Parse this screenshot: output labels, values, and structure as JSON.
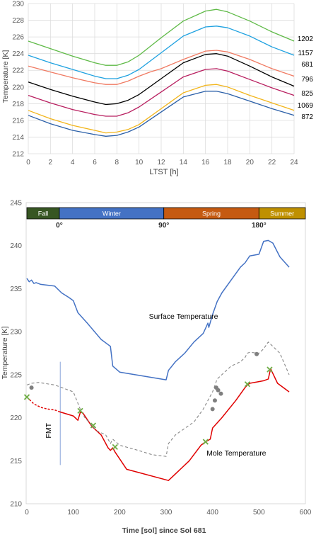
{
  "chart_data": [
    {
      "type": "line",
      "title": "",
      "xlabel": "LTST  [h]",
      "ylabel": "Temperature [K]",
      "xlim": [
        0,
        24
      ],
      "ylim": [
        212,
        230
      ],
      "x_ticks": [
        "0",
        "2",
        "4",
        "6",
        "8",
        "10",
        "12",
        "14",
        "16",
        "18",
        "20",
        "22",
        "24"
      ],
      "y_ticks": [
        "212",
        "214",
        "216",
        "218",
        "220",
        "222",
        "224",
        "226",
        "228",
        "230"
      ],
      "grid": true,
      "legend": "right-end labels",
      "series": [
        {
          "name": "1202",
          "color": "#5fba47",
          "x": [
            0,
            2,
            4,
            6,
            7,
            8,
            9,
            10,
            12,
            14,
            16,
            17,
            18,
            20,
            22,
            24
          ],
          "y": [
            225.5,
            224.6,
            223.7,
            222.9,
            222.6,
            222.6,
            223.0,
            223.8,
            225.9,
            227.9,
            229.1,
            229.3,
            229.0,
            227.9,
            226.6,
            225.5
          ]
        },
        {
          "name": "1157",
          "color": "#1ea1e0",
          "x": [
            0,
            2,
            4,
            6,
            7,
            8,
            9,
            10,
            12,
            14,
            16,
            17,
            18,
            20,
            22,
            24
          ],
          "y": [
            223.8,
            222.9,
            222.1,
            221.3,
            221.0,
            221.0,
            221.4,
            222.1,
            224.1,
            226.1,
            227.2,
            227.3,
            227.1,
            226.1,
            224.8,
            223.8
          ]
        },
        {
          "name": "681",
          "color": "#f07a62",
          "x": [
            0,
            2,
            4,
            6,
            7,
            8,
            9,
            10,
            11,
            12,
            14,
            16,
            17,
            18,
            20,
            22,
            24
          ],
          "y": [
            222.5,
            221.8,
            221.1,
            220.5,
            220.3,
            220.3,
            220.7,
            221.3,
            221.8,
            222.2,
            223.3,
            224.3,
            224.4,
            224.2,
            223.3,
            222.2,
            221.3
          ]
        },
        {
          "name": "796",
          "color": "#000000",
          "x": [
            0,
            2,
            4,
            6,
            7,
            8,
            9,
            10,
            12,
            14,
            16,
            17,
            18,
            20,
            22,
            24
          ],
          "y": [
            220.6,
            219.7,
            218.9,
            218.2,
            217.9,
            218.0,
            218.4,
            219.1,
            221.0,
            222.9,
            223.9,
            224.0,
            223.7,
            222.5,
            221.2,
            220.1
          ]
        },
        {
          "name": "825",
          "color": "#b81e5f",
          "x": [
            0,
            2,
            4,
            6,
            7,
            8,
            9,
            10,
            12,
            14,
            16,
            17,
            18,
            20,
            22,
            24
          ],
          "y": [
            219.0,
            218.1,
            217.3,
            216.7,
            216.5,
            216.5,
            216.9,
            217.6,
            219.4,
            221.2,
            222.1,
            222.2,
            221.9,
            220.9,
            219.9,
            219.0
          ]
        },
        {
          "name": "1069",
          "color": "#f2b51b",
          "x": [
            0,
            2,
            4,
            6,
            7,
            8,
            9,
            10,
            12,
            14,
            16,
            17,
            18,
            20,
            22,
            24
          ],
          "y": [
            217.2,
            216.2,
            215.4,
            214.8,
            214.5,
            214.6,
            214.9,
            215.5,
            217.4,
            219.3,
            220.2,
            220.3,
            220.0,
            219.0,
            218.1,
            217.2
          ]
        },
        {
          "name": "872",
          "color": "#2a5fa8",
          "x": [
            0,
            2,
            4,
            6,
            7,
            8,
            9,
            10,
            12,
            14,
            16,
            17,
            18,
            20,
            22,
            24
          ],
          "y": [
            216.6,
            215.6,
            214.8,
            214.3,
            214.1,
            214.2,
            214.6,
            215.2,
            217.0,
            218.8,
            219.5,
            219.5,
            219.2,
            218.3,
            217.4,
            216.6
          ]
        }
      ]
    },
    {
      "type": "line",
      "title": "",
      "xlabel": "Time [sol] since Sol 681",
      "ylabel": "Temperature [K]",
      "xlim": [
        0,
        600
      ],
      "ylim": [
        210,
        245
      ],
      "x_ticks": [
        "0",
        "100",
        "200",
        "300",
        "400",
        "500",
        "600"
      ],
      "y_ticks": [
        "210",
        "215",
        "220",
        "225",
        "230",
        "235",
        "240",
        "245"
      ],
      "grid": false,
      "seasons": [
        {
          "label": "Fall",
          "from": 0,
          "to": 70,
          "color": "#375623"
        },
        {
          "label": "Winter",
          "from": 70,
          "to": 295,
          "color": "#4472c4"
        },
        {
          "label": "Spring",
          "from": 295,
          "to": 500,
          "color": "#c55a11"
        },
        {
          "label": "Summer",
          "from": 500,
          "to": 600,
          "color": "#bf9000"
        }
      ],
      "season_markers": [
        {
          "label": "0°",
          "x": 70
        },
        {
          "label": "90°",
          "x": 295
        },
        {
          "label": "180°",
          "x": 500
        }
      ],
      "annotations": [
        {
          "text": "Surface Temperature",
          "x": 400,
          "y": 231.5
        },
        {
          "text": "Mole Temperature",
          "x": 390,
          "y": 215.6
        },
        {
          "text": "FMT",
          "x": 55,
          "y": 218.5
        }
      ],
      "fmt_line": {
        "x": 72,
        "y_from": 214.5,
        "y_to": 226.5
      },
      "series": [
        {
          "name": "Surface Temperature",
          "color": "#4472c4",
          "style": "solid",
          "x": [
            0,
            5,
            10,
            15,
            20,
            30,
            60,
            75,
            90,
            100,
            110,
            130,
            160,
            180,
            185,
            200,
            300,
            305,
            320,
            340,
            360,
            380,
            390,
            392,
            400,
            410,
            420,
            440,
            460,
            470,
            480,
            500,
            510,
            520,
            530,
            545,
            565
          ],
          "y": [
            236.2,
            235.8,
            236.0,
            235.6,
            235.7,
            235.5,
            235.3,
            234.5,
            234.0,
            233.6,
            232.2,
            231.0,
            229.1,
            228.3,
            226.0,
            225.3,
            224.4,
            225.5,
            226.5,
            227.5,
            228.8,
            229.8,
            231.0,
            230.5,
            232.0,
            233.5,
            234.5,
            236.0,
            237.5,
            238.0,
            238.8,
            239.0,
            240.5,
            240.6,
            240.3,
            238.7,
            237.5
          ]
        },
        {
          "name": "Mole Temperature (dashed, pre-FMT)",
          "color": "#e00000",
          "style": "dashed",
          "x": [
            0,
            15,
            30,
            45,
            60,
            70
          ],
          "y": [
            222.4,
            221.6,
            221.2,
            221.0,
            220.9,
            220.7
          ]
        },
        {
          "name": "Mole Temperature",
          "color": "#e00000",
          "style": "solid",
          "x": [
            70,
            100,
            110,
            115,
            120,
            140,
            160,
            175,
            180,
            185,
            190,
            215,
            305,
            350,
            375,
            385,
            395,
            400,
            420,
            450,
            470,
            475,
            480,
            500,
            510,
            520,
            525,
            540,
            565
          ],
          "y": [
            220.7,
            220.2,
            219.7,
            220.6,
            220.6,
            219.0,
            218.0,
            216.5,
            216.2,
            216.5,
            216.0,
            214.0,
            212.7,
            215.0,
            216.8,
            217.2,
            217.5,
            218.8,
            220.0,
            222.0,
            223.5,
            223.8,
            224.0,
            224.2,
            224.3,
            224.5,
            225.7,
            224.0,
            223.0
          ]
        },
        {
          "name": "Model (dashed grey)",
          "color": "#888888",
          "style": "dashed",
          "x": [
            0,
            10,
            25,
            60,
            100,
            115,
            125,
            150,
            170,
            180,
            185,
            200,
            240,
            270,
            300,
            305,
            320,
            360,
            380,
            400,
            410,
            420,
            440,
            460,
            470,
            475,
            480,
            500,
            510,
            520,
            545,
            565
          ],
          "y": [
            223.8,
            224.0,
            224.1,
            223.8,
            223.0,
            221.0,
            220.0,
            218.5,
            218.0,
            217.0,
            217.5,
            216.8,
            216.2,
            215.7,
            215.5,
            217.0,
            218.0,
            219.5,
            221.0,
            223.0,
            224.5,
            225.0,
            226.0,
            226.5,
            227.0,
            227.5,
            227.6,
            227.5,
            228.0,
            228.8,
            227.5,
            225.0
          ]
        }
      ],
      "points": {
        "grey_dots": [
          [
            10,
            223.5
          ],
          [
            400,
            221.0
          ],
          [
            405,
            222.0
          ],
          [
            408,
            223.5
          ],
          [
            412,
            223.2
          ],
          [
            418,
            222.8
          ],
          [
            495,
            227.4
          ]
        ],
        "green_crosses": [
          [
            0,
            222.4
          ],
          [
            115,
            220.8
          ],
          [
            143,
            219.1
          ],
          [
            190,
            216.6
          ],
          [
            385,
            217.2
          ],
          [
            475,
            223.9
          ],
          [
            523,
            225.6
          ]
        ]
      }
    }
  ]
}
